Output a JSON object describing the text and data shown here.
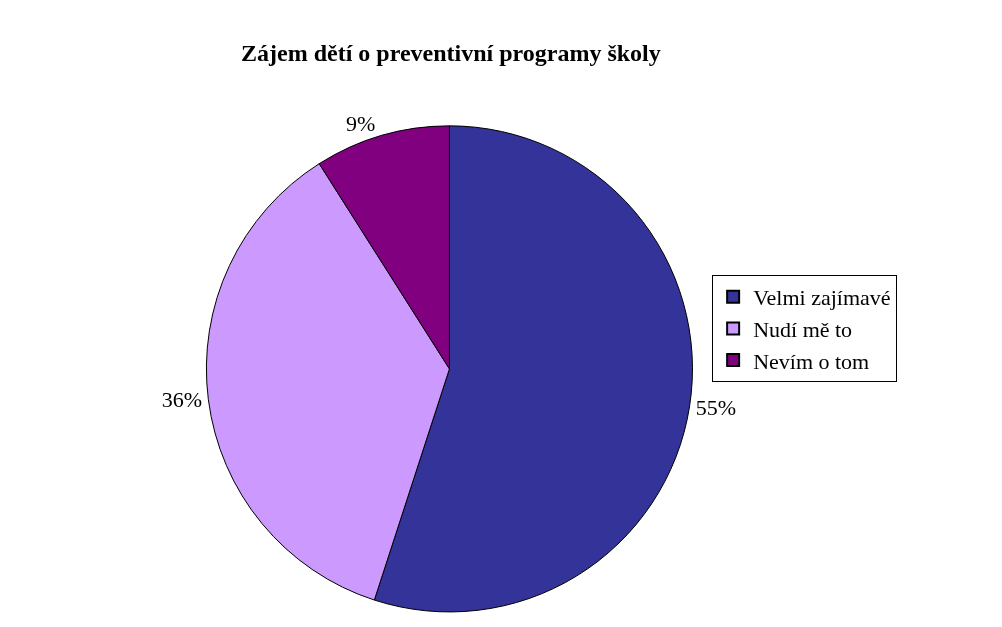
{
  "chart_data": {
    "type": "pie",
    "title": "Zájem dětí o preventivní programy školy",
    "categories": [
      "Velmi zajímavé",
      "Nudí mě to",
      "Nevím o tom"
    ],
    "values": [
      55,
      36,
      9
    ],
    "colors": [
      "#333399",
      "#cc99ff",
      "#800080"
    ],
    "value_labels": [
      "55%",
      "36%",
      "9%"
    ],
    "legend": "right"
  }
}
